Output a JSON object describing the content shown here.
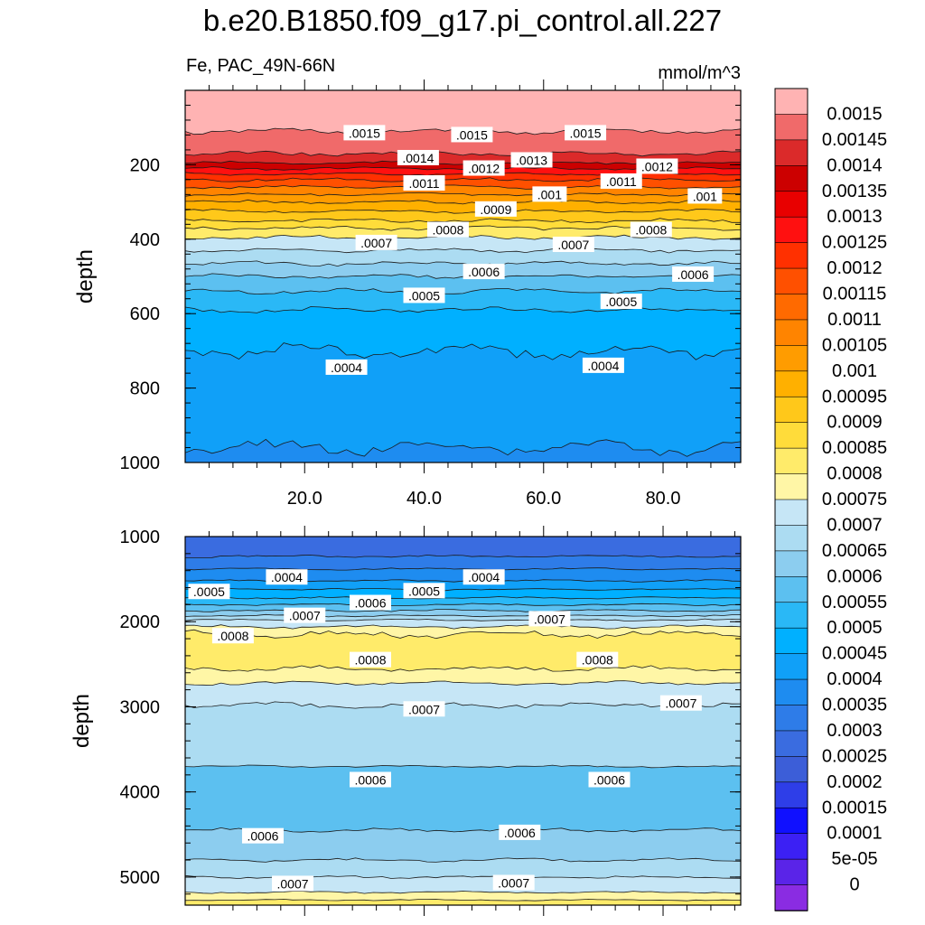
{
  "title": "b.e20.B1850.f09_g17.pi_control.all.227",
  "subtitle_left": "Fe, PAC_49N-66N",
  "subtitle_right": "mmol/m^3",
  "chart_data": [
    {
      "type": "contour",
      "panel": "upper",
      "xlabel": "",
      "ylabel": "depth",
      "xlim": [
        0,
        93
      ],
      "ylim": [
        1000,
        0
      ],
      "x_ticks": [
        20,
        40,
        60,
        80
      ],
      "x_tick_labels": [
        "20.0",
        "40.0",
        "60.0",
        "80.0"
      ],
      "y_ticks": [
        200,
        400,
        600,
        800,
        1000
      ],
      "y_tick_labels": [
        "200",
        "400",
        "600",
        "800",
        "1000"
      ],
      "contour_labels": [
        {
          "text": ".0015",
          "x": 30,
          "y": 115
        },
        {
          "text": ".0015",
          "x": 48,
          "y": 120
        },
        {
          "text": ".0015",
          "x": 67,
          "y": 115
        },
        {
          "text": ".0014",
          "x": 39,
          "y": 182
        },
        {
          "text": ".0013",
          "x": 58,
          "y": 188
        },
        {
          "text": ".0012",
          "x": 50,
          "y": 210
        },
        {
          "text": ".0012",
          "x": 79,
          "y": 205
        },
        {
          "text": ".0011",
          "x": 40,
          "y": 250
        },
        {
          "text": ".0011",
          "x": 73,
          "y": 245
        },
        {
          "text": ".001",
          "x": 61,
          "y": 280
        },
        {
          "text": ".001",
          "x": 87,
          "y": 285
        },
        {
          "text": ".0009",
          "x": 52,
          "y": 320
        },
        {
          "text": ".0008",
          "x": 44,
          "y": 375
        },
        {
          "text": ".0008",
          "x": 78,
          "y": 375
        },
        {
          "text": ".0007",
          "x": 32,
          "y": 410
        },
        {
          "text": ".0007",
          "x": 65,
          "y": 415
        },
        {
          "text": ".0006",
          "x": 50,
          "y": 488
        },
        {
          "text": ".0006",
          "x": 85,
          "y": 495
        },
        {
          "text": ".0005",
          "x": 40,
          "y": 552
        },
        {
          "text": ".0005",
          "x": 73,
          "y": 568
        },
        {
          "text": ".0004",
          "x": 27,
          "y": 745
        },
        {
          "text": ".0004",
          "x": 70,
          "y": 740
        }
      ]
    },
    {
      "type": "contour",
      "panel": "lower",
      "xlabel": "",
      "ylabel": "depth",
      "xlim": [
        0,
        93
      ],
      "ylim": [
        5330,
        1000
      ],
      "y_ticks": [
        1000,
        2000,
        3000,
        4000,
        5000
      ],
      "y_tick_labels": [
        "1000",
        "2000",
        "3000",
        "4000",
        "5000"
      ],
      "contour_labels": [
        {
          "text": ".0004",
          "x": 17,
          "y": 1480
        },
        {
          "text": ".0004",
          "x": 50,
          "y": 1480
        },
        {
          "text": ".0005",
          "x": 4,
          "y": 1650
        },
        {
          "text": ".0005",
          "x": 40,
          "y": 1640
        },
        {
          "text": ".0006",
          "x": 31,
          "y": 1780
        },
        {
          "text": ".0007",
          "x": 20,
          "y": 1930
        },
        {
          "text": ".0007",
          "x": 61,
          "y": 1970
        },
        {
          "text": ".0008",
          "x": 8,
          "y": 2170
        },
        {
          "text": ".0008",
          "x": 31,
          "y": 2450
        },
        {
          "text": ".0008",
          "x": 69,
          "y": 2450
        },
        {
          "text": ".0007",
          "x": 40,
          "y": 3030
        },
        {
          "text": ".0007",
          "x": 83,
          "y": 2960
        },
        {
          "text": ".0006",
          "x": 31,
          "y": 3860
        },
        {
          "text": ".0006",
          "x": 71,
          "y": 3860
        },
        {
          "text": ".0006",
          "x": 13,
          "y": 4520
        },
        {
          "text": ".0006",
          "x": 56,
          "y": 4480
        },
        {
          "text": ".0007",
          "x": 18,
          "y": 5080
        },
        {
          "text": ".0007",
          "x": 55,
          "y": 5070
        }
      ]
    }
  ],
  "colorbar": {
    "labels": [
      "0.0015",
      "0.00145",
      "0.0014",
      "0.00135",
      "0.0013",
      "0.00125",
      "0.0012",
      "0.00115",
      "0.0011",
      "0.00105",
      "0.001",
      "0.00095",
      "0.0009",
      "0.00085",
      "0.0008",
      "0.00075",
      "0.0007",
      "0.00065",
      "0.0006",
      "0.00055",
      "0.0005",
      "0.00045",
      "0.0004",
      "0.00035",
      "0.0003",
      "0.00025",
      "0.0002",
      "0.00015",
      "0.0001",
      "5e-05",
      "0"
    ],
    "colors": [
      "#ffb3b3",
      "#f06a6a",
      "#db2a2a",
      "#cc0000",
      "#e80000",
      "#ff1010",
      "#ff3000",
      "#ff5000",
      "#ff6a00",
      "#ff8400",
      "#ff9c00",
      "#ffb000",
      "#ffc81a",
      "#ffdc3a",
      "#ffeb6a",
      "#fff6a6",
      "#c6e6f6",
      "#acdcf2",
      "#8ccdef",
      "#5cc0f0",
      "#2ab8f6",
      "#00b0ff",
      "#10a0f8",
      "#1e8cf0",
      "#2e7ce8",
      "#3a6ce0",
      "#3c5ed8",
      "#2e3ee8",
      "#1010ff",
      "#3c20f4",
      "#5a24e8",
      "#8a2ce2"
    ]
  }
}
